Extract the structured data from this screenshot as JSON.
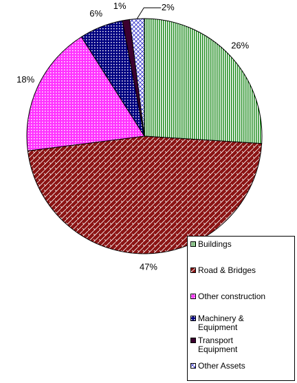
{
  "chart_data": {
    "type": "pie",
    "categories": [
      "Buildings",
      "Road & Bridges",
      "Other construction",
      "Machinery & Equipment",
      "Transport Equipment",
      "Other Assets"
    ],
    "values": [
      26,
      47,
      18,
      6,
      1,
      2
    ],
    "value_labels": [
      "26%",
      "47%",
      "18%",
      "6%",
      "1%",
      "2%"
    ],
    "colors": [
      "#1a8a1a",
      "#8b1414",
      "#ff33ff",
      "#000080",
      "#3d0030",
      "#3333cc"
    ],
    "legend": "right-bottom"
  }
}
